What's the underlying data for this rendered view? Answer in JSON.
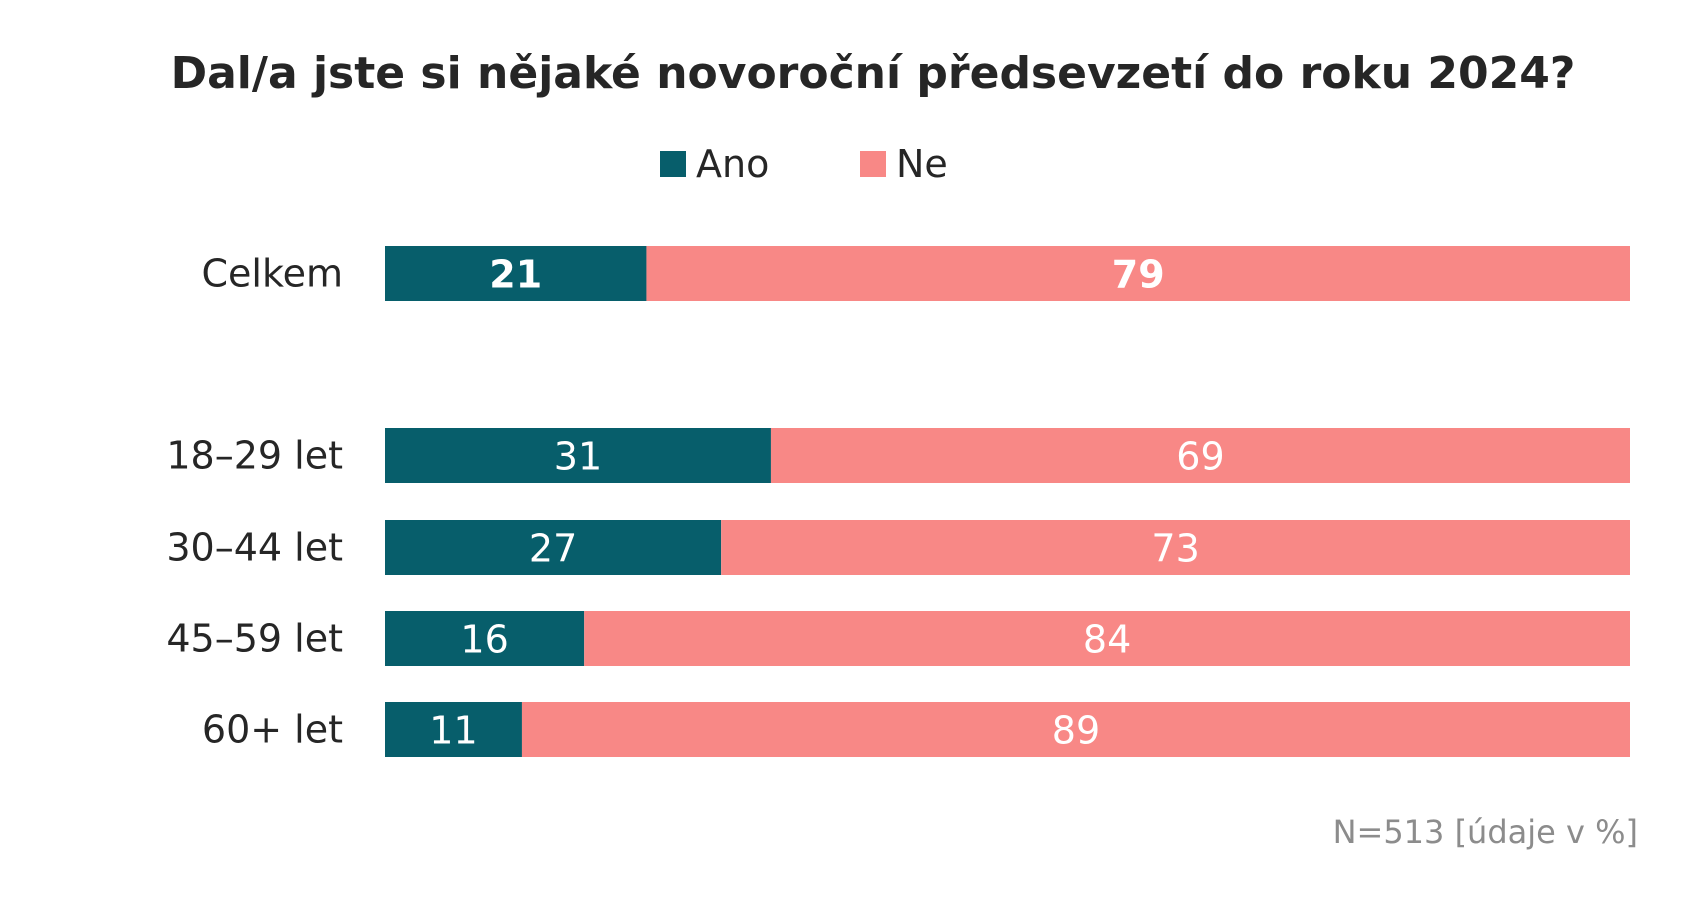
{
  "chart_data": {
    "type": "bar",
    "orientation": "horizontal",
    "stacked": true,
    "title": "Dal/a jste si nějaké novoroční předsevzetí do roku 2024?",
    "categories": [
      "Celkem",
      "18–29 let",
      "30–44 let",
      "45–59 let",
      "60+ let"
    ],
    "series": [
      {
        "name": "Ano",
        "color": "#075E6B",
        "values": [
          21,
          31,
          27,
          16,
          11
        ]
      },
      {
        "name": "Ne",
        "color": "#F88886",
        "values": [
          79,
          69,
          73,
          84,
          89
        ]
      }
    ],
    "xlim": [
      0,
      100
    ],
    "legend": "top-center",
    "grid": false,
    "note": "N=513 [údaje v %]"
  }
}
